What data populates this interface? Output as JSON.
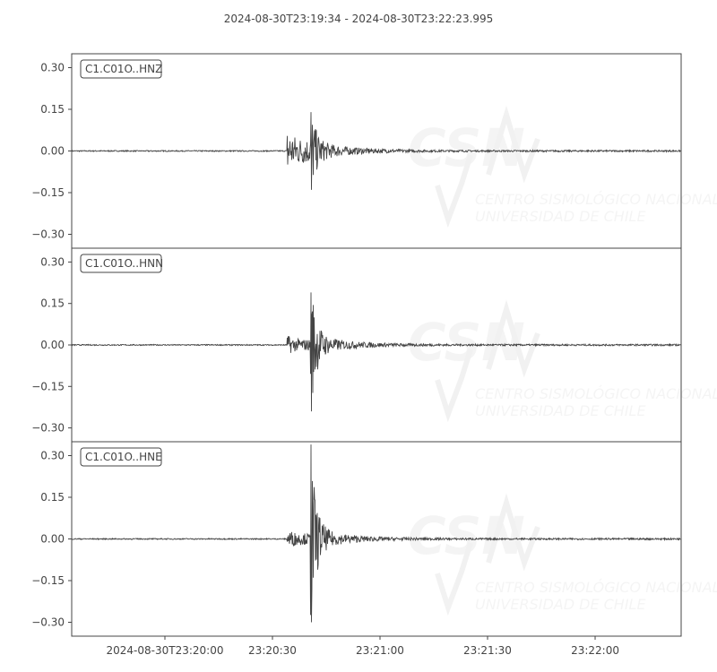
{
  "chart_data": {
    "type": "line",
    "title": "2024-08-30T23:19:34  -  2024-08-30T23:22:23.995",
    "start_time": "2024-08-30T23:19:34",
    "end_time": "2024-08-30T23:22:23.995",
    "x_ticks": [
      "2024-08-30T23:20:00",
      "23:20:30",
      "23:21:00",
      "23:21:30",
      "23:22:00"
    ],
    "x_tick_times": [
      "23:20:00",
      "23:20:30",
      "23:21:00",
      "23:21:30",
      "23:22:00"
    ],
    "y_ticks": [
      "0.30",
      "0.15",
      "0.00",
      "−0.15",
      "−0.30"
    ],
    "y_tick_values": [
      0.3,
      0.15,
      0.0,
      -0.15,
      -0.3
    ],
    "ylim": [
      -0.35,
      0.35
    ],
    "grid": false,
    "line_color": "#444444",
    "watermark": "CSN CENTRO SISMOLÓGICO NACIONAL UNIVERSIDAD DE CHILE",
    "series": [
      {
        "name": "C1.C01O..HNZ",
        "p_arrival": "23:20:34",
        "s_arrival": "23:20:40.5",
        "p_peak": 0.09,
        "max": 0.14,
        "min": -0.14
      },
      {
        "name": "C1.C01O..HNN",
        "p_arrival": "23:20:34",
        "s_arrival": "23:20:40.5",
        "p_peak": 0.04,
        "max": 0.19,
        "min": -0.24
      },
      {
        "name": "C1.C01O..HNE",
        "p_arrival": "23:20:34",
        "s_arrival": "23:20:40.5",
        "p_peak": 0.04,
        "max": 0.34,
        "min": -0.3
      }
    ]
  }
}
